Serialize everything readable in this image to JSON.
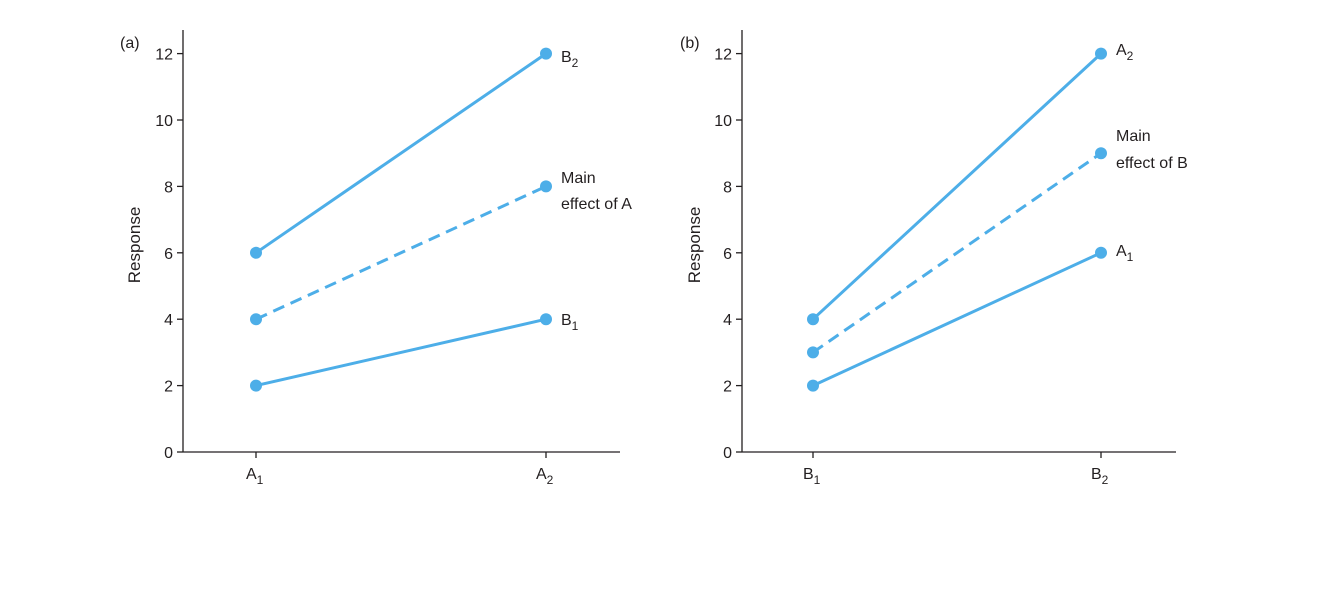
{
  "chart_data": [
    {
      "type": "line",
      "panel_label": "(a)",
      "ylabel": "Response",
      "ylim": [
        0,
        12
      ],
      "yticks": [
        0,
        2,
        4,
        6,
        8,
        10,
        12
      ],
      "categories": [
        {
          "base": "A",
          "sub": "1"
        },
        {
          "base": "A",
          "sub": "2"
        }
      ],
      "series": [
        {
          "label_lines": [
            {
              "base": "B",
              "sub": "2"
            }
          ],
          "values": [
            6,
            12
          ],
          "style": "solid"
        },
        {
          "label_lines": [
            {
              "base": "Main",
              "sub": ""
            },
            {
              "base": "effect of A",
              "sub": ""
            }
          ],
          "values": [
            4,
            8
          ],
          "style": "dashed"
        },
        {
          "label_lines": [
            {
              "base": "B",
              "sub": "1"
            }
          ],
          "values": [
            2,
            4
          ],
          "style": "solid"
        }
      ],
      "grid": false,
      "color": "#4daee8"
    },
    {
      "type": "line",
      "panel_label": "(b)",
      "ylabel": "Response",
      "ylim": [
        0,
        12
      ],
      "yticks": [
        0,
        2,
        4,
        6,
        8,
        10,
        12
      ],
      "categories": [
        {
          "base": "B",
          "sub": "1"
        },
        {
          "base": "B",
          "sub": "2"
        }
      ],
      "series": [
        {
          "label_lines": [
            {
              "base": "A",
              "sub": "2"
            }
          ],
          "values": [
            4,
            12
          ],
          "style": "solid"
        },
        {
          "label_lines": [
            {
              "base": "Main",
              "sub": ""
            },
            {
              "base": "effect of B",
              "sub": ""
            }
          ],
          "values": [
            3,
            9
          ],
          "style": "dashed"
        },
        {
          "label_lines": [
            {
              "base": "A",
              "sub": "1"
            }
          ],
          "values": [
            2,
            6
          ],
          "style": "solid"
        }
      ],
      "grid": false,
      "color": "#4daee8"
    }
  ]
}
